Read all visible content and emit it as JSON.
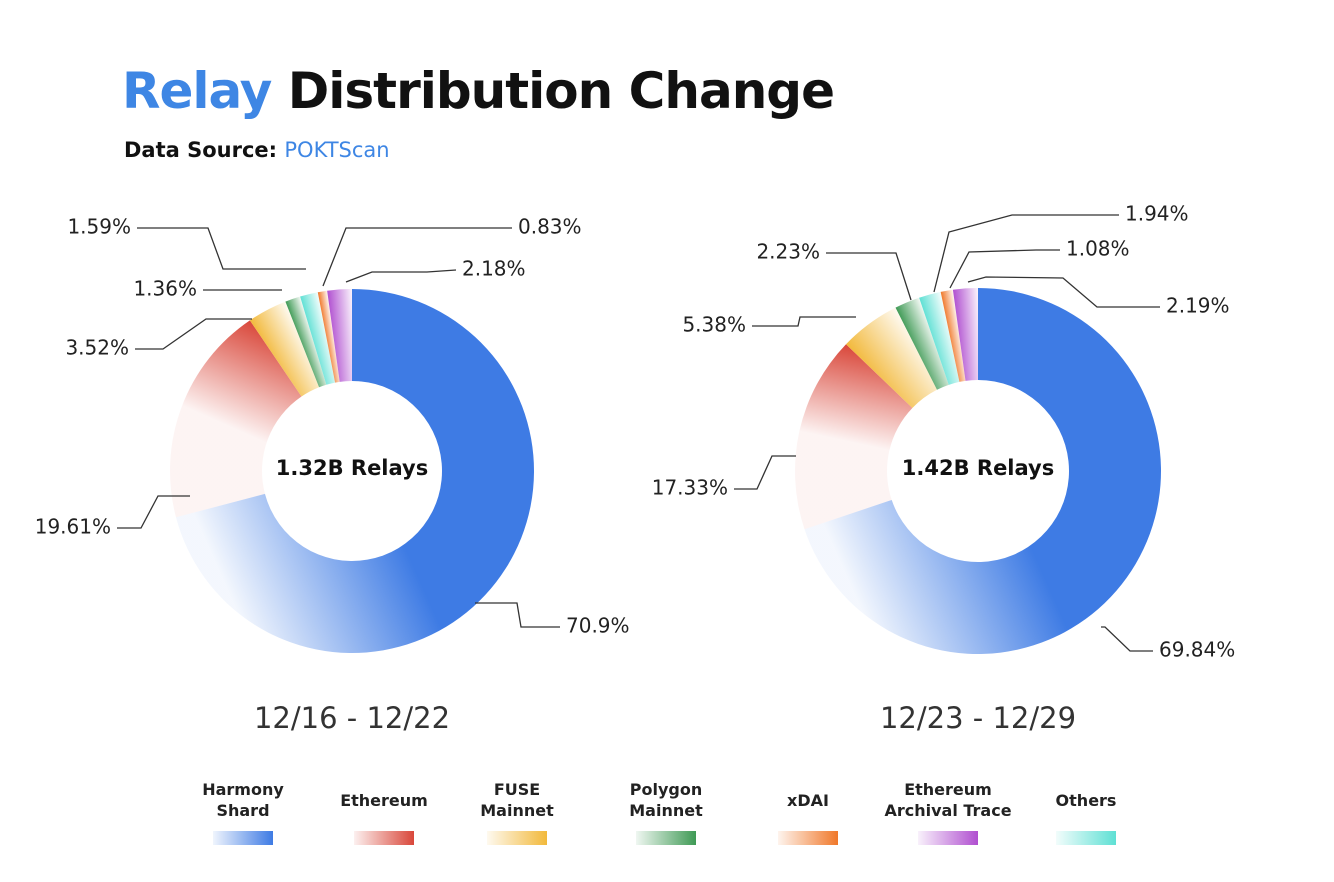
{
  "header": {
    "title_accent": "Relay",
    "title_rest": "Distribution Change",
    "source_label": "Data Source:",
    "source_name": "POKTScan"
  },
  "chart_data": [
    {
      "type": "pie",
      "title": "",
      "center_label": "1.32B Relays",
      "period": "12/16 - 12/22",
      "slices": [
        {
          "name": "Harmony Shard",
          "value": 70.9,
          "label": "70.9%"
        },
        {
          "name": "Ethereum",
          "value": 19.61,
          "label": "19.61%"
        },
        {
          "name": "FUSE Mainnet",
          "value": 3.52,
          "label": "3.52%"
        },
        {
          "name": "Polygon Mainnet",
          "value": 1.36,
          "label": "1.36%"
        },
        {
          "name": "Others",
          "value": 1.59,
          "label": "1.59%"
        },
        {
          "name": "xDAI",
          "value": 0.83,
          "label": "0.83%"
        },
        {
          "name": "Ethereum Archival Trace",
          "value": 2.18,
          "label": "2.18%"
        }
      ]
    },
    {
      "type": "pie",
      "title": "",
      "center_label": "1.42B Relays",
      "period": "12/23 - 12/29",
      "slices": [
        {
          "name": "Harmony Shard",
          "value": 69.84,
          "label": "69.84%"
        },
        {
          "name": "Ethereum",
          "value": 17.33,
          "label": "17.33%"
        },
        {
          "name": "FUSE Mainnet",
          "value": 5.38,
          "label": "5.38%"
        },
        {
          "name": "Polygon Mainnet",
          "value": 2.23,
          "label": "2.23%"
        },
        {
          "name": "Others",
          "value": 1.94,
          "label": "1.94%"
        },
        {
          "name": "xDAI",
          "value": 1.08,
          "label": "1.08%"
        },
        {
          "name": "Ethereum Archival Trace",
          "value": 2.19,
          "label": "2.19%"
        }
      ]
    }
  ],
  "legend": [
    {
      "name": "Harmony Shard",
      "lines": [
        "Harmony",
        "Shard"
      ],
      "color": "#3e7be4"
    },
    {
      "name": "Ethereum",
      "lines": [
        "Ethereum"
      ],
      "color": "#d9473a"
    },
    {
      "name": "FUSE Mainnet",
      "lines": [
        "FUSE",
        "Mainnet"
      ],
      "color": "#f2b93b"
    },
    {
      "name": "Polygon Mainnet",
      "lines": [
        "Polygon",
        "Mainnet"
      ],
      "color": "#3f9a55"
    },
    {
      "name": "xDAI",
      "lines": [
        "xDAI"
      ],
      "color": "#f0782a"
    },
    {
      "name": "Ethereum Archival Trace",
      "lines": [
        "Ethereum",
        "Archival Trace"
      ],
      "color": "#b04fd0"
    },
    {
      "name": "Others",
      "lines": [
        "Others"
      ],
      "color": "#5ee0d4"
    }
  ]
}
